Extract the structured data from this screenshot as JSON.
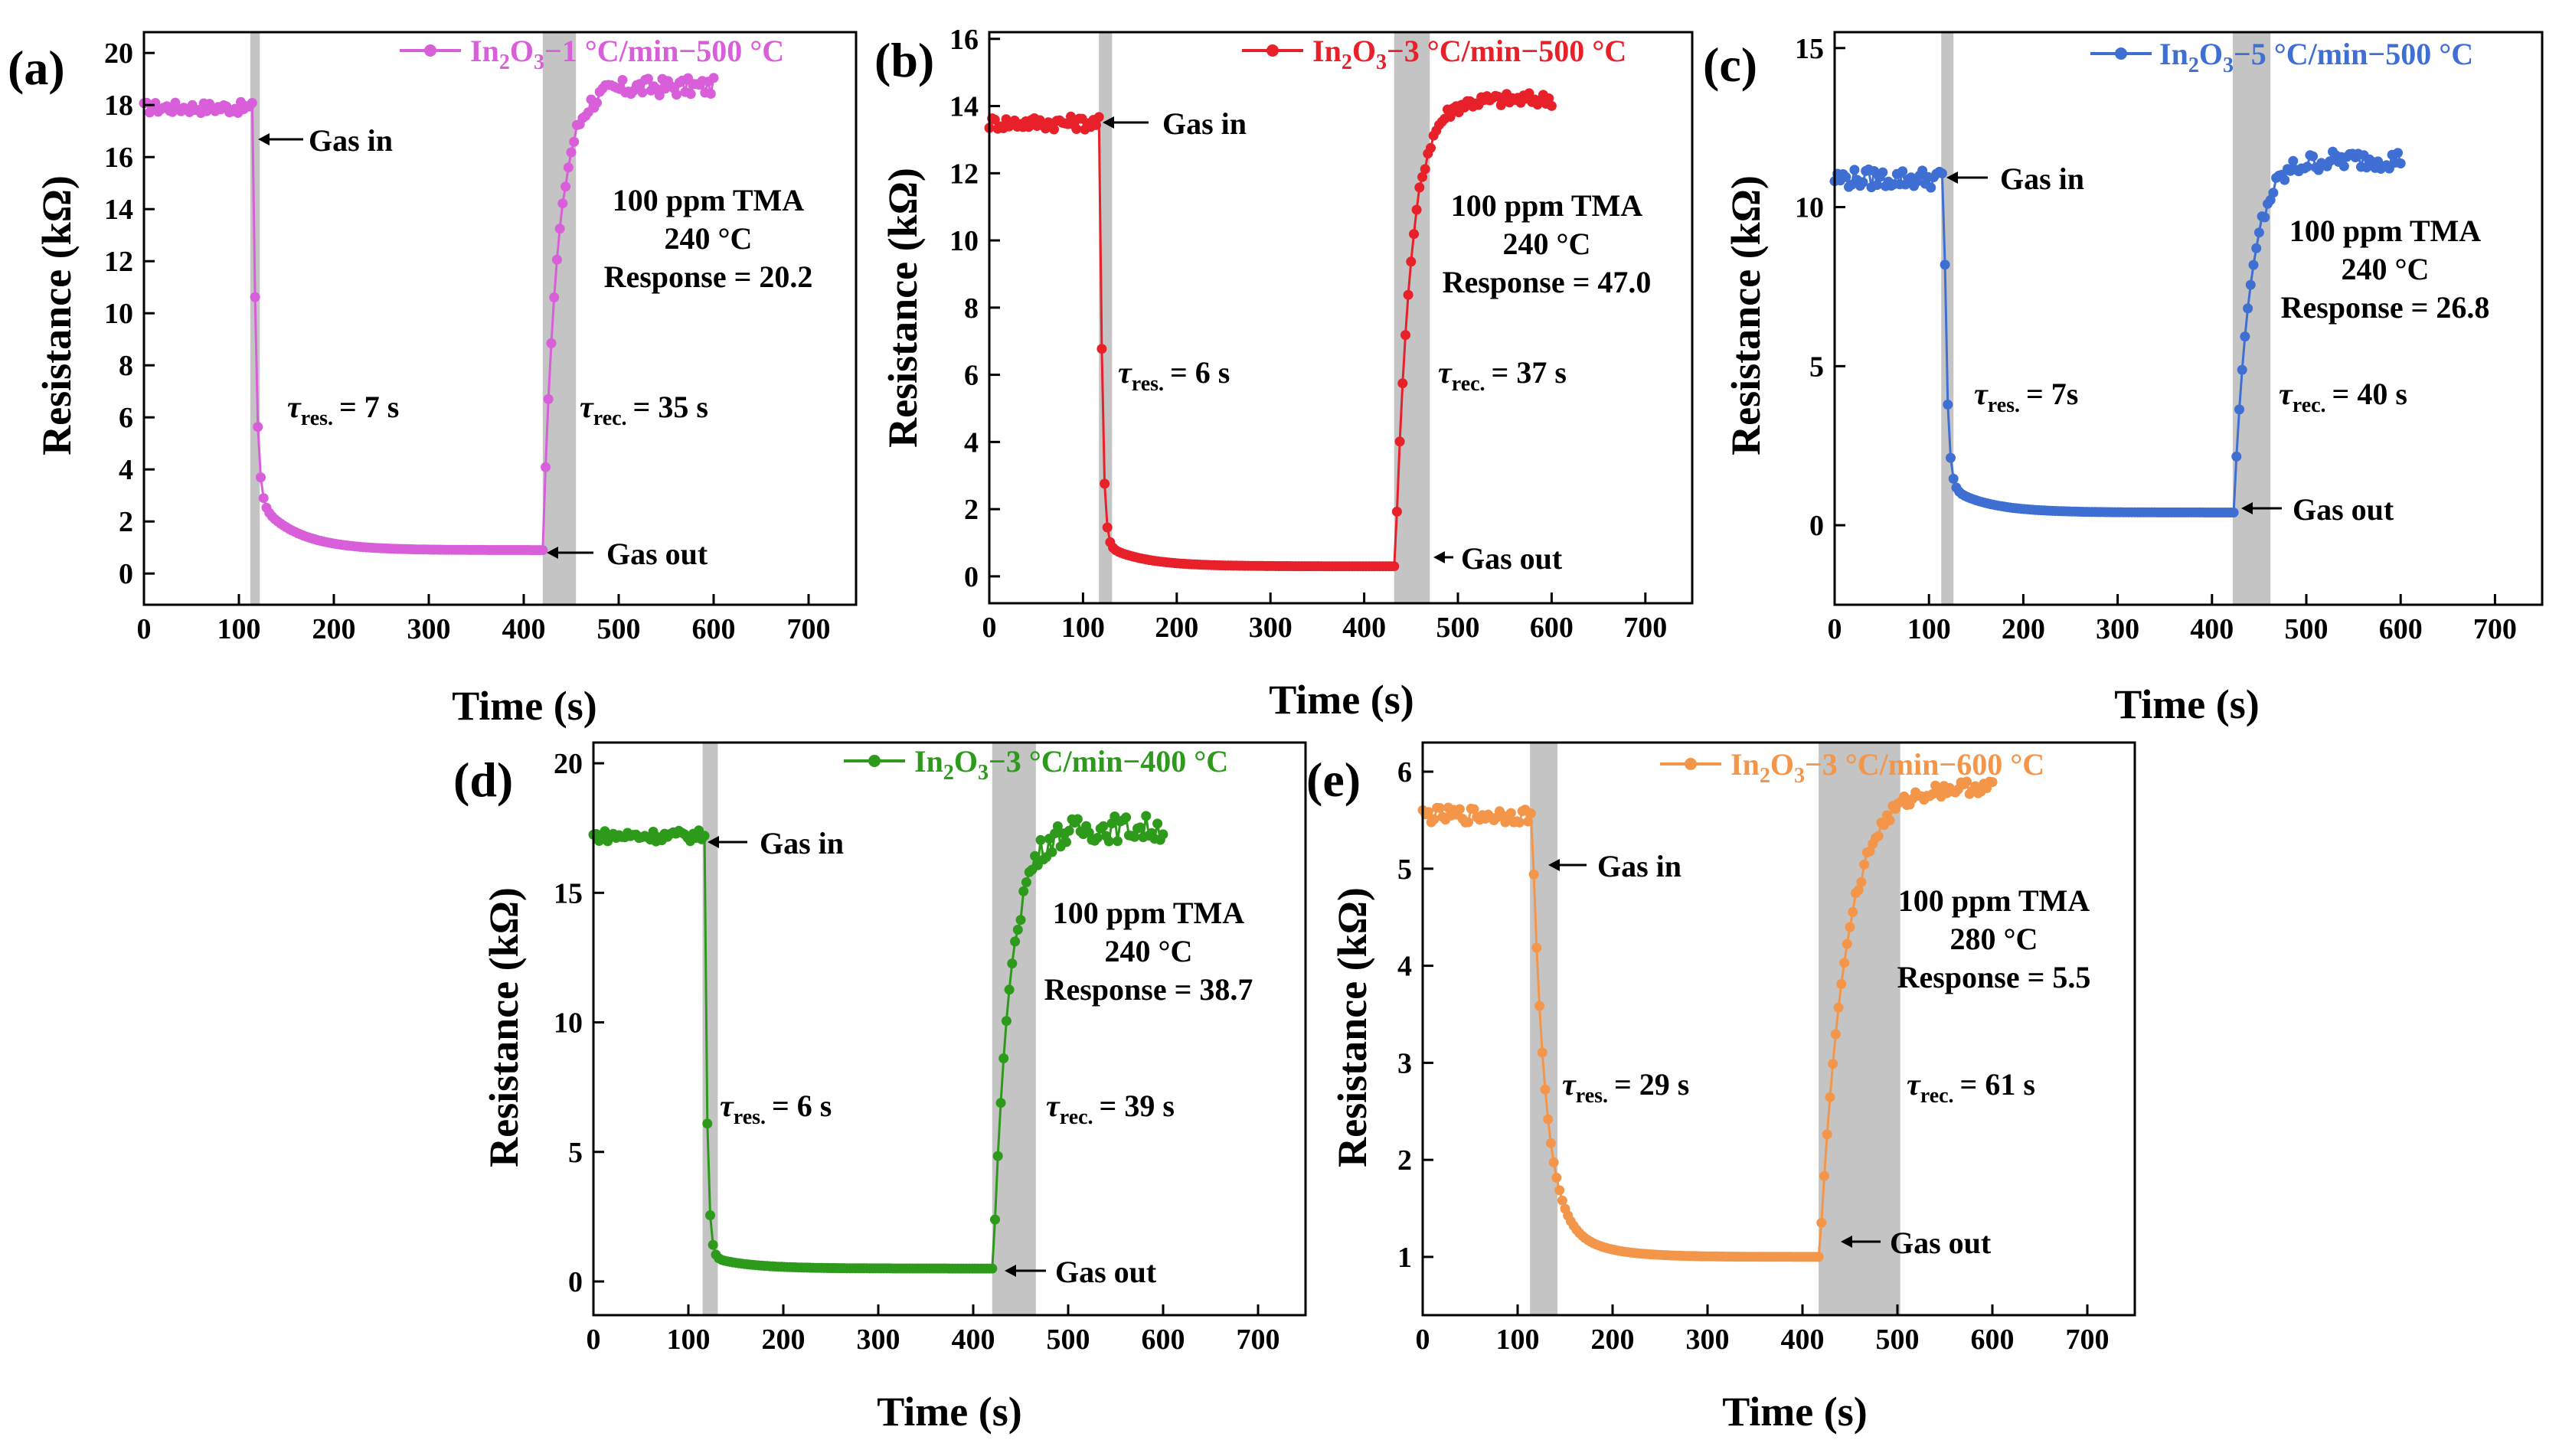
{
  "chart_data": [
    {
      "id": "a",
      "panel_label": "(a)",
      "type": "scatter",
      "color": "#d95ed9",
      "legend": {
        "main": "In",
        "sub1": "2",
        "mid": "O",
        "sub2": "3",
        "tail": "−1 °C/min−500 °C"
      },
      "xlabel": "Time (s)",
      "ylabel": "Resistance (kΩ)",
      "xlim": [
        0,
        750
      ],
      "ylim": [
        -1.2,
        20.8
      ],
      "xticks": [
        0,
        100,
        200,
        300,
        400,
        500,
        600,
        700
      ],
      "yticks": [
        0,
        2,
        4,
        6,
        8,
        10,
        12,
        14,
        16,
        18,
        20
      ],
      "shade_regions": [
        [
          112,
          122
        ],
        [
          420,
          455
        ]
      ],
      "series": {
        "x0": 0,
        "dx": 3,
        "base": 17.9,
        "noise": 0.22,
        "t_in": 115,
        "t_res": 7,
        "low_drop": 3.0,
        "low_plateau": 0.9,
        "t_out": 420,
        "t_rec": 35,
        "high": 18.7,
        "noise_high": 0.35,
        "x_end": 600
      },
      "annotations": {
        "gas_in": "Gas in",
        "gas_out": "Gas out",
        "conc": "100 ppm TMA",
        "temp": "240 °C",
        "response": "Response = 20.2",
        "tau_res": "= 7 s",
        "tau_rec": "= 35 s"
      },
      "tau_symbol": "τ",
      "tau_res_sub": "res.",
      "tau_rec_sub": "rec."
    },
    {
      "id": "b",
      "panel_label": "(b)",
      "type": "scatter",
      "color": "#e8202a",
      "legend": {
        "main": "In",
        "sub1": "2",
        "mid": "O",
        "sub2": "3",
        "tail": "−3 °C/min−500 °C"
      },
      "xlabel": "Time (s)",
      "ylabel": "Resistance (kΩ)",
      "xlim": [
        0,
        750
      ],
      "ylim": [
        -0.8,
        16.2
      ],
      "xticks": [
        0,
        100,
        200,
        300,
        400,
        500,
        600,
        700
      ],
      "yticks": [
        0,
        2,
        4,
        6,
        8,
        10,
        12,
        14,
        16
      ],
      "shade_regions": [
        [
          117,
          131
        ],
        [
          432,
          470
        ]
      ],
      "series": {
        "x0": 0,
        "dx": 3,
        "base": 13.5,
        "noise": 0.2,
        "t_in": 118,
        "t_res": 6,
        "low_drop": 1.0,
        "low_plateau": 0.3,
        "t_out": 433,
        "t_rec": 37,
        "high": 14.2,
        "noise_high": 0.2,
        "x_end": 600
      },
      "annotations": {
        "gas_in": "Gas in",
        "gas_out": "Gas out",
        "conc": "100 ppm TMA",
        "temp": "240 °C",
        "response": "Response = 47.0",
        "tau_res": "= 6 s",
        "tau_rec": "= 37 s"
      },
      "tau_symbol": "τ",
      "tau_res_sub": "res.",
      "tau_rec_sub": "rec."
    },
    {
      "id": "c",
      "panel_label": "(c)",
      "type": "scatter",
      "color": "#3f6fd3",
      "legend": {
        "main": "In",
        "sub1": "2",
        "mid": "O",
        "sub2": "3",
        "tail": "−5 °C/min−500 °C"
      },
      "xlabel": "Time (s)",
      "ylabel": "Resistance (kΩ)",
      "xlim": [
        0,
        750
      ],
      "ylim": [
        -2.5,
        15.5
      ],
      "xticks": [
        0,
        100,
        200,
        300,
        400,
        500,
        600,
        700
      ],
      "yticks": [
        0,
        5,
        10,
        15
      ],
      "shade_regions": [
        [
          113,
          126
        ],
        [
          422,
          462
        ]
      ],
      "series": {
        "x0": 0,
        "dx": 3,
        "base": 10.9,
        "noise": 0.3,
        "t_in": 116,
        "t_res": 7,
        "low_drop": 1.3,
        "low_plateau": 0.4,
        "t_out": 423,
        "t_rec": 40,
        "high": 11.5,
        "noise_high": 0.3,
        "x_end": 600
      },
      "annotations": {
        "gas_in": "Gas in",
        "gas_out": "Gas out",
        "conc": "100 ppm TMA",
        "temp": "240 °C",
        "response": "Response = 26.8",
        "tau_res": "= 7s",
        "tau_rec": "= 40 s"
      },
      "tau_symbol": "τ",
      "tau_res_sub": "res.",
      "tau_rec_sub": "rec."
    },
    {
      "id": "d",
      "panel_label": "(d)",
      "type": "scatter",
      "color": "#2e9a1c",
      "legend": {
        "main": "In",
        "sub1": "2",
        "mid": "O",
        "sub2": "3",
        "tail": "−3 °C/min−400 °C"
      },
      "xlabel": "Time (s)",
      "ylabel": "Resistance (kΩ)",
      "xlim": [
        0,
        750
      ],
      "ylim": [
        -1.3,
        20.8
      ],
      "xticks": [
        0,
        100,
        200,
        300,
        400,
        500,
        600,
        700
      ],
      "yticks": [
        0,
        5,
        10,
        15,
        20
      ],
      "shade_regions": [
        [
          115,
          131
        ],
        [
          420,
          466
        ]
      ],
      "series": {
        "x0": 0,
        "dx": 3,
        "base": 17.2,
        "noise": 0.22,
        "t_in": 117,
        "t_res": 6,
        "low_drop": 1.0,
        "low_plateau": 0.5,
        "t_out": 421,
        "t_rec": 39,
        "high": 17.5,
        "noise_high": 0.5,
        "x_end": 600
      },
      "annotations": {
        "gas_in": "Gas in",
        "gas_out": "Gas out",
        "conc": "100 ppm TMA",
        "temp": "240 °C",
        "response": "Response = 38.7",
        "tau_res": "= 6 s",
        "tau_rec": "= 39 s"
      },
      "tau_symbol": "τ",
      "tau_res_sub": "res.",
      "tau_rec_sub": "rec."
    },
    {
      "id": "e",
      "panel_label": "(e)",
      "type": "scatter",
      "color": "#f4964a",
      "legend": {
        "main": "In",
        "sub1": "2",
        "mid": "O",
        "sub2": "3",
        "tail": "−3 °C/min−600 °C"
      },
      "xlabel": "Time (s)",
      "ylabel": "Resistance (kΩ)",
      "xlim": [
        0,
        750
      ],
      "ylim": [
        0.4,
        6.3
      ],
      "xticks": [
        0,
        100,
        200,
        300,
        400,
        500,
        600,
        700
      ],
      "yticks": [
        1,
        2,
        3,
        4,
        5,
        6
      ],
      "shade_regions": [
        [
          113,
          142
        ],
        [
          417,
          503
        ]
      ],
      "series": {
        "x0": 0,
        "dx": 3,
        "base": 5.55,
        "noise": 0.08,
        "t_in": 115,
        "t_res": 29,
        "low_drop": 1.6,
        "low_plateau": 1.0,
        "t_out": 418,
        "t_rec": 61,
        "high": 5.85,
        "noise_high": 0.07,
        "x_end": 600
      },
      "annotations": {
        "gas_in": "Gas in",
        "gas_out": "Gas out",
        "conc": "100 ppm TMA",
        "temp": "280 °C",
        "response": "Response = 5.5",
        "tau_res": "= 29 s",
        "tau_rec": "= 61 s"
      },
      "tau_symbol": "τ",
      "tau_res_sub": "res.",
      "tau_rec_sub": "rec."
    }
  ]
}
